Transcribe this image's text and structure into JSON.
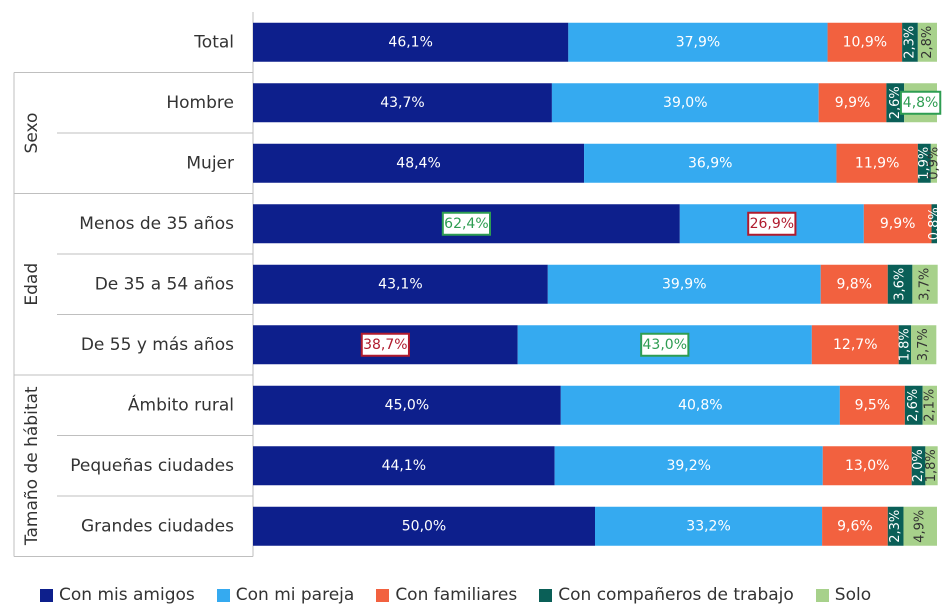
{
  "chart_data": {
    "type": "bar",
    "orientation": "horizontal",
    "stacked": true,
    "xlim": [
      0,
      100
    ],
    "grid": false,
    "legend_position": "bottom",
    "groups": [
      {
        "label": "",
        "categories": [
          "Total"
        ]
      },
      {
        "label": "Sexo",
        "categories": [
          "Hombre",
          "Mujer"
        ]
      },
      {
        "label": "Edad",
        "categories": [
          "Menos de 35 años",
          "De 35 a 54 años",
          "De 55 y más años"
        ]
      },
      {
        "label": "Tamaño de hábitat",
        "categories": [
          "Ámbito rural",
          "Pequeñas ciudades",
          "Grandes ciudades"
        ]
      }
    ],
    "categories": [
      "Total",
      "Hombre",
      "Mujer",
      "Menos de 35 años",
      "De 35 a 54 años",
      "De 55 y más años",
      "Ámbito rural",
      "Pequeñas ciudades",
      "Grandes ciudades"
    ],
    "series": [
      {
        "name": "Con mis amigos",
        "color": "#0d1f8c",
        "values": [
          46.1,
          43.7,
          48.4,
          62.4,
          43.1,
          38.7,
          45.0,
          44.1,
          50.0
        ],
        "labels": [
          "46,1%",
          "43,7%",
          "48,4%",
          "62,4%",
          "43,1%",
          "38,7%",
          "45,0%",
          "44,1%",
          "50,0%"
        ]
      },
      {
        "name": "Con mi pareja",
        "color": "#35aaf0",
        "values": [
          37.9,
          39.0,
          36.9,
          26.9,
          39.9,
          43.0,
          40.8,
          39.2,
          33.2
        ],
        "labels": [
          "37,9%",
          "39,0%",
          "36,9%",
          "26,9%",
          "39,9%",
          "43,0%",
          "40,8%",
          "39,2%",
          "33,2%"
        ]
      },
      {
        "name": "Con familiares",
        "color": "#f2613f",
        "values": [
          10.9,
          9.9,
          11.9,
          9.9,
          9.8,
          12.7,
          9.5,
          13.0,
          9.6
        ],
        "labels": [
          "10,9%",
          "9,9%",
          "11,9%",
          "9,9%",
          "9,8%",
          "12,7%",
          "9,5%",
          "13,0%",
          "9,6%"
        ]
      },
      {
        "name": "Con compañeros de trabajo",
        "color": "#0a5f57",
        "values": [
          2.3,
          2.6,
          1.9,
          0.8,
          3.6,
          1.8,
          2.6,
          2.0,
          2.3
        ],
        "labels": [
          "2,3%",
          "2,6%",
          "1,9%",
          "0,8%",
          "3,6%",
          "1,8%",
          "2,6%",
          "2,0%",
          "2,3%"
        ]
      },
      {
        "name": "Solo",
        "color": "#a7d18b",
        "values": [
          2.8,
          4.8,
          0.9,
          0.0,
          3.7,
          3.7,
          2.1,
          1.8,
          4.9
        ],
        "labels": [
          "2,8%",
          "4,8%",
          "0,9%",
          "",
          "3,7%",
          "3,7%",
          "2,1%",
          "1,8%",
          "4,9%"
        ]
      }
    ],
    "highlights": [
      {
        "category": "Hombre",
        "series": "Solo",
        "style": "max"
      },
      {
        "category": "Menos de 35 años",
        "series": "Con mis amigos",
        "style": "max"
      },
      {
        "category": "Menos de 35 años",
        "series": "Con mi pareja",
        "style": "min"
      },
      {
        "category": "De 55 y más años",
        "series": "Con mis amigos",
        "style": "min"
      },
      {
        "category": "De 55 y más años",
        "series": "Con mi pareja",
        "style": "max"
      }
    ],
    "highlight_colors": {
      "max": "#2e9d52",
      "min": "#b01b2e"
    }
  }
}
